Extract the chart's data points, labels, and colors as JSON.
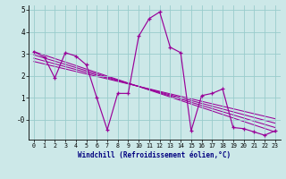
{
  "xlabel": "Windchill (Refroidissement éolien,°C)",
  "background_color": "#cce8e8",
  "grid_color": "#99cccc",
  "line_color": "#990099",
  "x": [
    0,
    1,
    2,
    3,
    4,
    5,
    6,
    7,
    8,
    9,
    10,
    11,
    12,
    13,
    14,
    15,
    16,
    17,
    18,
    19,
    20,
    21,
    22,
    23
  ],
  "y": [
    3.1,
    2.85,
    1.9,
    3.05,
    2.9,
    2.5,
    1.0,
    -0.45,
    1.2,
    1.2,
    3.8,
    4.6,
    4.9,
    3.3,
    3.05,
    -0.5,
    1.1,
    1.2,
    1.4,
    -0.35,
    -0.4,
    -0.55,
    -0.7,
    -0.5
  ],
  "ylim": [
    -0.9,
    5.2
  ],
  "xlim": [
    -0.5,
    23.5
  ],
  "yticks": [
    0,
    1,
    2,
    3,
    4,
    5
  ],
  "ytick_labels": [
    "-0",
    "1",
    "2",
    "3",
    "4",
    "5"
  ],
  "xticks": [
    0,
    1,
    2,
    3,
    4,
    5,
    6,
    7,
    8,
    9,
    10,
    11,
    12,
    13,
    14,
    15,
    16,
    17,
    18,
    19,
    20,
    21,
    22,
    23
  ],
  "reg_lines": [
    {
      "x0": 0,
      "y0": 3.1,
      "x1": 23,
      "y1": -0.55
    },
    {
      "x0": 0,
      "y0": 2.95,
      "x1": 23,
      "y1": -0.35
    },
    {
      "x0": 0,
      "y0": 2.8,
      "x1": 23,
      "y1": -0.15
    },
    {
      "x0": 0,
      "y0": 2.65,
      "x1": 23,
      "y1": 0.05
    }
  ]
}
